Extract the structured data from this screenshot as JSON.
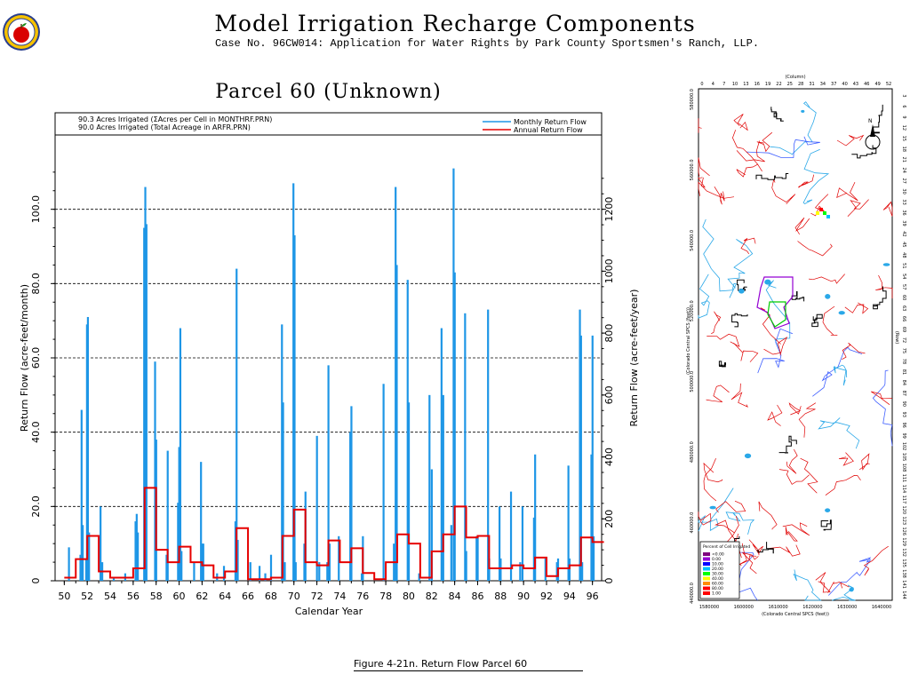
{
  "header": {
    "title": "Model Irrigation Recharge Components",
    "subtitle": "Case No. 96CW014: Application for Water Rights by Park County Sportsmen's Ranch, LLP."
  },
  "figure_caption": "Figure 4-21n.  Return Flow Parcel 60",
  "colors": {
    "monthly": "#1e96e6",
    "annual": "#e60000",
    "grid": "#000000"
  },
  "chart_data": {
    "type": "bar",
    "title": "Parcel 60 (Unknown)",
    "notes": [
      "90.3 Acres Irrigated (ΣAcres per Cell in MONTHRF.PRN)",
      "90.0 Acres Irrigated (Total Acreage in ARFR.PRN)"
    ],
    "xlabel": "Calendar Year",
    "ylabel": "Return Flow (acre-feet/month)",
    "y2label": "Return Flow (acre-feet/year)",
    "xlim": [
      1949.2,
      1996.8
    ],
    "ylim": [
      0,
      120
    ],
    "y2lim": [
      0,
      1440
    ],
    "xticks": [
      "50",
      "52",
      "54",
      "56",
      "58",
      "60",
      "62",
      "64",
      "66",
      "68",
      "70",
      "72",
      "74",
      "76",
      "78",
      "80",
      "82",
      "84",
      "86",
      "88",
      "90",
      "92",
      "94",
      "96"
    ],
    "yticks": [
      "0",
      "20.0",
      "40.0",
      "60.0",
      "80.0",
      "100.0"
    ],
    "y2ticks": [
      "0",
      "200",
      "400",
      "600",
      "800",
      "1000",
      "1200"
    ],
    "grid": "horizontal dashed at 20, 40, 60, 80, 100",
    "legend_position": "top-right",
    "series": [
      {
        "name": "Monthly Return Flow",
        "type": "bar",
        "points": [
          [
            1950.4,
            9
          ],
          [
            1951.4,
            7
          ],
          [
            1951.5,
            46
          ],
          [
            1951.6,
            15
          ],
          [
            1951.9,
            6
          ],
          [
            1951.97,
            69
          ],
          [
            1952.05,
            71
          ],
          [
            1952.15,
            13
          ],
          [
            1953.15,
            20
          ],
          [
            1953.3,
            5
          ],
          [
            1954.3,
            1
          ],
          [
            1955.3,
            2
          ],
          [
            1956.2,
            16
          ],
          [
            1956.3,
            18
          ],
          [
            1956.4,
            13
          ],
          [
            1956.95,
            95
          ],
          [
            1957.05,
            106
          ],
          [
            1957.15,
            96
          ],
          [
            1957.9,
            59
          ],
          [
            1958.0,
            38
          ],
          [
            1958.9,
            7
          ],
          [
            1959.0,
            35
          ],
          [
            1959.9,
            21
          ],
          [
            1960.0,
            36
          ],
          [
            1960.1,
            68
          ],
          [
            1960.2,
            8
          ],
          [
            1961.3,
            5
          ],
          [
            1961.9,
            32
          ],
          [
            1962.0,
            10
          ],
          [
            1962.1,
            10
          ],
          [
            1963.3,
            2
          ],
          [
            1963.9,
            4
          ],
          [
            1964.9,
            16
          ],
          [
            1965.0,
            84
          ],
          [
            1965.1,
            11
          ],
          [
            1966.2,
            5
          ],
          [
            1967.0,
            4
          ],
          [
            1967.5,
            2
          ],
          [
            1968.0,
            7
          ],
          [
            1968.95,
            69
          ],
          [
            1969.05,
            48
          ],
          [
            1969.2,
            5
          ],
          [
            1969.95,
            107
          ],
          [
            1970.05,
            93
          ],
          [
            1970.15,
            5
          ],
          [
            1970.9,
            10
          ],
          [
            1971.0,
            24
          ],
          [
            1972.0,
            39
          ],
          [
            1972.2,
            5
          ],
          [
            1972.9,
            5
          ],
          [
            1973.0,
            58
          ],
          [
            1973.1,
            10
          ],
          [
            1973.9,
            12
          ],
          [
            1974.9,
            40
          ],
          [
            1975.0,
            47
          ],
          [
            1975.9,
            2
          ],
          [
            1976.0,
            12
          ],
          [
            1977.8,
            53
          ],
          [
            1978.7,
            10
          ],
          [
            1978.85,
            106
          ],
          [
            1978.95,
            85
          ],
          [
            1979.9,
            81
          ],
          [
            1980.0,
            48
          ],
          [
            1980.9,
            2
          ],
          [
            1981.8,
            50
          ],
          [
            1982.0,
            30
          ],
          [
            1982.85,
            68
          ],
          [
            1983.0,
            50
          ],
          [
            1983.7,
            15
          ],
          [
            1983.9,
            111
          ],
          [
            1984.0,
            83
          ],
          [
            1984.9,
            72
          ],
          [
            1985.0,
            8
          ],
          [
            1985.9,
            12
          ],
          [
            1986.0,
            12
          ],
          [
            1986.9,
            73
          ],
          [
            1987.0,
            6
          ],
          [
            1987.9,
            20
          ],
          [
            1988.0,
            6
          ],
          [
            1988.9,
            24
          ],
          [
            1989.7,
            5
          ],
          [
            1989.9,
            20
          ],
          [
            1990.9,
            17
          ],
          [
            1991.0,
            34
          ],
          [
            1991.9,
            6
          ],
          [
            1992.9,
            5
          ],
          [
            1993.0,
            6
          ],
          [
            1993.9,
            31
          ],
          [
            1994.0,
            6
          ],
          [
            1994.9,
            73
          ],
          [
            1995.0,
            66
          ],
          [
            1995.1,
            5
          ],
          [
            1995.9,
            34
          ],
          [
            1996.0,
            66
          ],
          [
            1996.1,
            12
          ]
        ]
      },
      {
        "name": "Annual Return Flow",
        "type": "step",
        "axis": "right",
        "x": [
          1950,
          1951,
          1952,
          1953,
          1954,
          1955,
          1956,
          1957,
          1958,
          1959,
          1960,
          1961,
          1962,
          1963,
          1964,
          1965,
          1966,
          1967,
          1968,
          1969,
          1970,
          1971,
          1972,
          1973,
          1974,
          1975,
          1976,
          1977,
          1978,
          1979,
          1980,
          1981,
          1982,
          1983,
          1984,
          1985,
          1986,
          1987,
          1988,
          1989,
          1990,
          1991,
          1992,
          1993,
          1994,
          1995,
          1996
        ],
        "values": [
          10,
          70,
          145,
          30,
          10,
          10,
          40,
          300,
          100,
          60,
          110,
          60,
          50,
          10,
          30,
          170,
          5,
          5,
          10,
          145,
          230,
          60,
          50,
          130,
          60,
          105,
          25,
          5,
          60,
          150,
          120,
          10,
          95,
          150,
          240,
          140,
          145,
          40,
          40,
          50,
          40,
          75,
          15,
          40,
          50,
          140,
          125
        ]
      }
    ]
  },
  "map": {
    "top_label": "(Column)",
    "column_ticks": [
      "0",
      "4",
      "7",
      "10",
      "13",
      "16",
      "19",
      "22",
      "25",
      "28",
      "31",
      "34",
      "37",
      "40",
      "43",
      "46",
      "49",
      "52"
    ],
    "row_ticks": [
      "3",
      "6",
      "9",
      "12",
      "15",
      "18",
      "21",
      "24",
      "27",
      "30",
      "33",
      "36",
      "39",
      "42",
      "45",
      "48",
      "51",
      "54",
      "57",
      "60",
      "63",
      "66",
      "69",
      "72",
      "75",
      "78",
      "81",
      "84",
      "87",
      "90",
      "93",
      "96",
      "99",
      "102",
      "105",
      "108",
      "111",
      "114",
      "117",
      "120",
      "123",
      "126",
      "129",
      "132",
      "135",
      "138",
      "141",
      "144"
    ],
    "row_label": "(Row)",
    "y_axis_label": "(Colorado Central SPCS (feet))",
    "y_ticks": [
      "580000.0",
      "560000.0",
      "540000.0",
      "520000.0",
      "500000.0",
      "480000.0",
      "460000.0",
      "440000.0"
    ],
    "x_ticks": [
      "1580000",
      "1600000",
      "1610000",
      "1620000",
      "1630000",
      "1640000"
    ],
    "x_axis_label": "(Colorado Central SPCS (feet))",
    "legend_title": "Percent of Cell Irrigated",
    "legend_items": [
      {
        "label": "<0.00",
        "color": "#7f007f"
      },
      {
        "label": "0.00",
        "color": "#9400d3"
      },
      {
        "label": "10.00",
        "color": "#0000ff"
      },
      {
        "label": "20.00",
        "color": "#00bfff"
      },
      {
        "label": "30.00",
        "color": "#00ff00"
      },
      {
        "label": "40.00",
        "color": "#ffff00"
      },
      {
        "label": "60.00",
        "color": "#ff8c00"
      },
      {
        "label": "80.00",
        "color": "#ff0000"
      },
      {
        "label": "1.00",
        "color": "#ff0000"
      }
    ],
    "north_label": "N"
  }
}
